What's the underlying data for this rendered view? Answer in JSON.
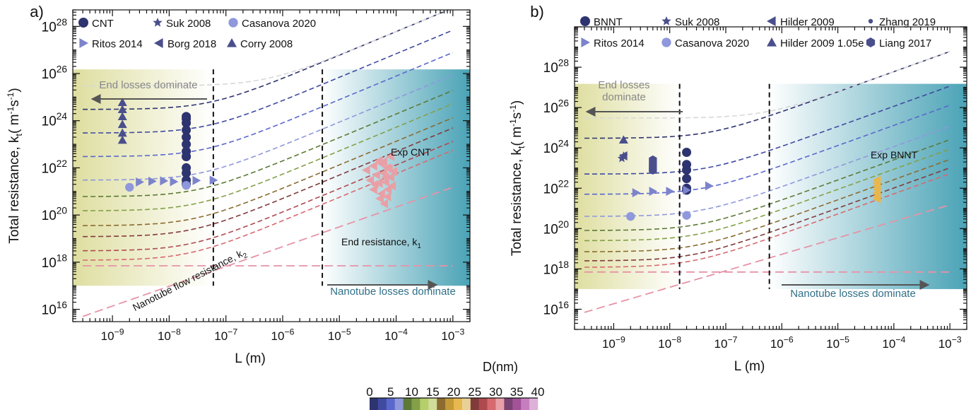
{
  "figure": {
    "colorbar": {
      "title": "D(nm)",
      "ticks": [
        "0",
        "5",
        "10",
        "15",
        "20",
        "25",
        "30",
        "35",
        "40"
      ],
      "colors": [
        "#2e3470",
        "#3f4aa0",
        "#5a68cc",
        "#8f98dc",
        "#5c7a35",
        "#83a048",
        "#b5cf6a",
        "#d2dc9a",
        "#8b6b30",
        "#c49a37",
        "#e7b84f",
        "#e8d197",
        "#813b3b",
        "#ad4a4f",
        "#d66a6f",
        "#e8a0a6",
        "#7b4274",
        "#a25296",
        "#c77ec0",
        "#deb1d8"
      ]
    }
  },
  "chart_data": [
    {
      "type": "scatter",
      "panel_label": "a)",
      "xlabel": "L (m)",
      "ylabel": "Total resistance, k",
      "ylabel_sub": "t",
      "ylabel_units": "( m",
      "ylabel_sup1": "-1",
      "ylabel_units2": "s",
      "ylabel_sup2": "-1",
      "ylabel_close": ")",
      "x_scale": "log",
      "y_scale": "log",
      "xlim": [
        2e-10,
        0.002
      ],
      "ylim": [
        3000000000000000.0,
        5e+28
      ],
      "x_ticks": [
        {
          "base": "10",
          "exp": "−9",
          "value": 1e-09
        },
        {
          "base": "10",
          "exp": "−8",
          "value": 1e-08
        },
        {
          "base": "10",
          "exp": "−7",
          "value": 1e-07
        },
        {
          "base": "10",
          "exp": "−6",
          "value": 1e-06
        },
        {
          "base": "10",
          "exp": "−5",
          "value": 1e-05
        },
        {
          "base": "10",
          "exp": "−4",
          "value": 0.0001
        },
        {
          "base": "10",
          "exp": "−3",
          "value": 0.001
        }
      ],
      "y_ticks": [
        {
          "base": "10",
          "exp": "16",
          "value": 1e+16
        },
        {
          "base": "10",
          "exp": "18",
          "value": 1e+18
        },
        {
          "base": "10",
          "exp": "20",
          "value": 1e+20
        },
        {
          "base": "10",
          "exp": "22",
          "value": 1e+22
        },
        {
          "base": "10",
          "exp": "24",
          "value": 1e+24
        },
        {
          "base": "10",
          "exp": "26",
          "value": 1e+26
        },
        {
          "base": "10",
          "exp": "28",
          "value": 1e+28
        }
      ],
      "shade_ymax": 1.5e+26,
      "shade_ymin": 1e+17,
      "left_shade_to": 6e-08,
      "right_shade_from": 5e-06,
      "vlines": [
        6e-08,
        5e-06
      ],
      "legend": [
        {
          "label": "CNT",
          "marker": "circle-large",
          "color": "#2e3470"
        },
        {
          "label": "Suk 2008",
          "marker": "star",
          "color": "#4a4f8c"
        },
        {
          "label": "Casanova 2020",
          "marker": "circle",
          "color": "#8f98dc"
        },
        {
          "label": "Ritos 2014",
          "marker": "triangle-right",
          "color": "#7c84cc"
        },
        {
          "label": "Borg 2018",
          "marker": "triangle-left",
          "color": "#4a4f8c"
        },
        {
          "label": "Corry 2008",
          "marker": "triangle-up",
          "color": "#4a4f8c"
        }
      ],
      "annotations": [
        {
          "id": "end-losses",
          "text": "End losses dominate"
        },
        {
          "id": "nanotube-losses",
          "text": "Nanotube losses dominate"
        },
        {
          "id": "exp",
          "text": "Exp CNT"
        },
        {
          "id": "end-resistance",
          "text": "End resistance, k",
          "sub": "1"
        },
        {
          "id": "flow-resistance",
          "text": "Nanotube flow resistance, k",
          "sub": "2"
        }
      ],
      "end_resistance": 7e+17,
      "flow_resistance_at": [
        [
          3e-10,
          5000000000000000.0
        ],
        [
          0.001,
          1.5e+21
        ]
      ],
      "curves": [
        {
          "k1": 3e+24,
          "color": "#2e3470"
        },
        {
          "k1": 3e+23,
          "color": "#3f4aa0"
        },
        {
          "k1": 3e+22,
          "color": "#5a68cc"
        },
        {
          "k1": 3e+21,
          "color": "#8f98dc"
        },
        {
          "k1": 6e+20,
          "color": "#5c7a35"
        },
        {
          "k1": 1.5e+20,
          "color": "#83a048"
        },
        {
          "k1": 3.5e+19,
          "color": "#8b6b30"
        },
        {
          "k1": 1.2e+19,
          "color": "#813b3b"
        },
        {
          "k1": 3e+18,
          "color": "#ad4a4f"
        },
        {
          "k1": 1.2e+18,
          "color": "#d66a6f"
        }
      ],
      "k2_curves": [
        1e-19,
        6e-19,
        3e-18,
        1.5e-17,
        6e-17,
        2.5e-16,
        8e-16,
        2.5e-15,
        1e-14,
        4e-14
      ],
      "points": [
        {
          "marker": "circle-large",
          "color": "#2e3470",
          "x": [
            2e-08,
            2e-08,
            2e-08,
            2e-08,
            2e-08,
            2e-08,
            2e-08,
            2e-08,
            2e-08,
            2e-08,
            2e-08,
            2e-08,
            2e-08
          ],
          "y": [
            1.5e+24,
            8e+23,
            4e+23,
            2e+23,
            1e+23,
            5e+22,
            3e+22,
            1e+22,
            6e+21,
            3e+21,
            2e+21,
            3e+22,
            1.2e+24
          ]
        },
        {
          "marker": "circle",
          "color": "#8f98dc",
          "x": [
            2e-09,
            2e-08
          ],
          "y": [
            1.5e+21,
            1.8e+21
          ]
        },
        {
          "marker": "triangle-right",
          "color": "#7c84cc",
          "x": [
            3e-09,
            5e-09,
            8e-09,
            1.2e-08,
            3e-08,
            6e-08
          ],
          "y": [
            2.5e+21,
            2.7e+21,
            2.8e+21,
            2.6e+21,
            2.9e+21,
            3e+21
          ]
        },
        {
          "marker": "triangle-up",
          "color": "#4a4f8c",
          "x": [
            1.5e-09,
            1.5e-09,
            1.5e-09,
            1.5e-09,
            1.5e-09,
            1.5e-09
          ],
          "y": [
            6e+24,
            3e+24,
            1.5e+24,
            7e+23,
            3e+23,
            1.5e+23
          ]
        },
        {
          "marker": "triangle-left",
          "color": "#e8a0a6",
          "x": [
            3e-05,
            4e-05,
            5e-05,
            6e-05,
            7e-05,
            8e-05,
            9e-05,
            3.5e-05,
            4.5e-05,
            5.5e-05,
            6.5e-05,
            7.5e-05,
            8.5e-05,
            4e-05,
            5e-05,
            6e-05,
            7e-05,
            8e-05,
            5.5e-05,
            6.5e-05,
            4.2e-05,
            7.2e-05,
            5.2e-05,
            6.2e-05
          ],
          "y": [
            8e+21,
            1.2e+22,
            2e+22,
            6e+21,
            1e+22,
            4e+21,
            7e+21,
            3e+21,
            5e+21,
            1.5e+22,
            2.5e+21,
            9e+21,
            1.7e+21,
            1.2e+21,
            2.2e+21,
            1.8e+22,
            6e+20,
            3e+22,
            8e+20,
            4e+21,
            2e+21,
            1.2e+21,
            5e+20,
            3e+20
          ]
        }
      ]
    },
    {
      "type": "scatter",
      "panel_label": "b)",
      "xlabel": "L (m)",
      "ylabel": "Total resistance, k",
      "ylabel_sub": "t",
      "ylabel_units": "( m",
      "ylabel_sup1": "-1",
      "ylabel_units2": "s",
      "ylabel_sup2": "-1",
      "ylabel_close": ")",
      "x_scale": "log",
      "y_scale": "log",
      "xlim": [
        2e-10,
        0.002
      ],
      "ylim": [
        1000000000000000.0,
        1e+30
      ],
      "x_ticks": [
        {
          "base": "10",
          "exp": "−9",
          "value": 1e-09
        },
        {
          "base": "10",
          "exp": "−8",
          "value": 1e-08
        },
        {
          "base": "10",
          "exp": "−7",
          "value": 1e-07
        },
        {
          "base": "10",
          "exp": "−6",
          "value": 1e-06
        },
        {
          "base": "10",
          "exp": "−5",
          "value": 1e-05
        },
        {
          "base": "10",
          "exp": "−4",
          "value": 0.0001
        },
        {
          "base": "10",
          "exp": "−3",
          "value": 0.001
        }
      ],
      "y_ticks": [
        {
          "base": "10",
          "exp": "16",
          "value": 1e+16
        },
        {
          "base": "10",
          "exp": "18",
          "value": 1e+18
        },
        {
          "base": "10",
          "exp": "20",
          "value": 1e+20
        },
        {
          "base": "10",
          "exp": "22",
          "value": 1e+22
        },
        {
          "base": "10",
          "exp": "24",
          "value": 1e+24
        },
        {
          "base": "10",
          "exp": "26",
          "value": 1e+26
        },
        {
          "base": "10",
          "exp": "28",
          "value": 1e+28
        }
      ],
      "shade_ymax": 1.5e+27,
      "shade_ymin": 1e+17,
      "left_shade_to": 1.5e-08,
      "right_shade_from": 6e-07,
      "vlines": [
        1.5e-08,
        6e-07
      ],
      "legend": [
        {
          "label": "BNNT",
          "marker": "circle-large",
          "color": "#2e3470"
        },
        {
          "label": "Suk 2008",
          "marker": "star",
          "color": "#4a4f8c"
        },
        {
          "label": "Hilder 2009",
          "marker": "triangle-left",
          "color": "#4a4f8c"
        },
        {
          "label": "Zhang 2019",
          "marker": "dot",
          "color": "#4a4f8c"
        },
        {
          "label": "Ritos 2014",
          "marker": "triangle-right",
          "color": "#7c84cc"
        },
        {
          "label": "Casanova 2020",
          "marker": "circle",
          "color": "#8f98dc"
        },
        {
          "label": "Hilder 2009 1.05e",
          "marker": "triangle-up",
          "color": "#4a4f8c"
        },
        {
          "label": "Liang 2017",
          "marker": "hexagon",
          "color": "#4a4f8c"
        }
      ],
      "annotations": [
        {
          "id": "end-losses",
          "text": "End losses\ndominate"
        },
        {
          "id": "nanotube-losses",
          "text": "Nanotube losses dominate"
        },
        {
          "id": "exp",
          "text": "Exp BNNT"
        }
      ],
      "end_resistance": 7e+17,
      "flow_resistance_at": [
        [
          3e-10,
          7000000000000000.0
        ],
        [
          0.001,
          1.5e+21
        ]
      ],
      "curves": [
        {
          "k1": 3e+24,
          "color": "#2e3470"
        },
        {
          "k1": 5e+22,
          "color": "#3f4aa0"
        },
        {
          "k1": 5e+21,
          "color": "#5a68cc"
        },
        {
          "k1": 4e+20,
          "color": "#8f98dc"
        },
        {
          "k1": 8e+19,
          "color": "#5c7a35"
        },
        {
          "k1": 2.5e+19,
          "color": "#83a048"
        },
        {
          "k1": 7e+18,
          "color": "#8b6b30"
        },
        {
          "k1": 2.5e+18,
          "color": "#813b3b"
        },
        {
          "k1": 1.2e+18,
          "color": "#d66a6f"
        }
      ],
      "k2_curves": [
        1e-19,
        1.2e-18,
        6e-18,
        3e-17,
        1.2e-16,
        4e-16,
        1.5e-15,
        4e-15,
        1.5e-14
      ],
      "points": [
        {
          "marker": "circle-large",
          "color": "#2e3470",
          "x": [
            2e-08,
            2e-08,
            2e-08,
            2e-08,
            2e-08,
            2e-08
          ],
          "y": [
            6e+23,
            1.5e+23,
            8e+22,
            3e+22,
            1e+22,
            8e+21
          ]
        },
        {
          "marker": "star",
          "color": "#4a4f8c",
          "x": [
            1.4e-09,
            1.5e-09
          ],
          "y": [
            3e+23,
            4e+23
          ]
        },
        {
          "marker": "hexagon",
          "color": "#4a4f8c",
          "x": [
            5e-09,
            5e-09,
            5e-09,
            5e-09
          ],
          "y": [
            2.5e+23,
            1.5e+23,
            1e+23,
            8e+22
          ]
        },
        {
          "marker": "triangle-up",
          "color": "#4a4f8c",
          "x": [
            1.5e-09
          ],
          "y": [
            2.5e+24
          ]
        },
        {
          "marker": "triangle-left",
          "color": "#4a4f8c",
          "x": [
            1.5e-09
          ],
          "y": [
            4e+23
          ]
        },
        {
          "marker": "triangle-right",
          "color": "#7c84cc",
          "x": [
            2.5e-09,
            5e-09,
            1e-08,
            2e-08,
            5e-08
          ],
          "y": [
            6e+21,
            7e+21,
            7e+21,
            8e+21,
            1.3e+22
          ]
        },
        {
          "marker": "circle",
          "color": "#8f98dc",
          "x": [
            2e-09,
            2e-08
          ],
          "y": [
            4e+20,
            4.5e+20
          ]
        },
        {
          "marker": "triangle-left",
          "color": "#e9b64c",
          "x": [
            5e-05,
            5e-05,
            5e-05,
            5e-05,
            5e-05,
            5e-05,
            5e-05
          ],
          "y": [
            2.5e+22,
            1.8e+22,
            1.3e+22,
            9e+21,
            6e+21,
            4e+21,
            3e+21
          ]
        }
      ]
    }
  ]
}
